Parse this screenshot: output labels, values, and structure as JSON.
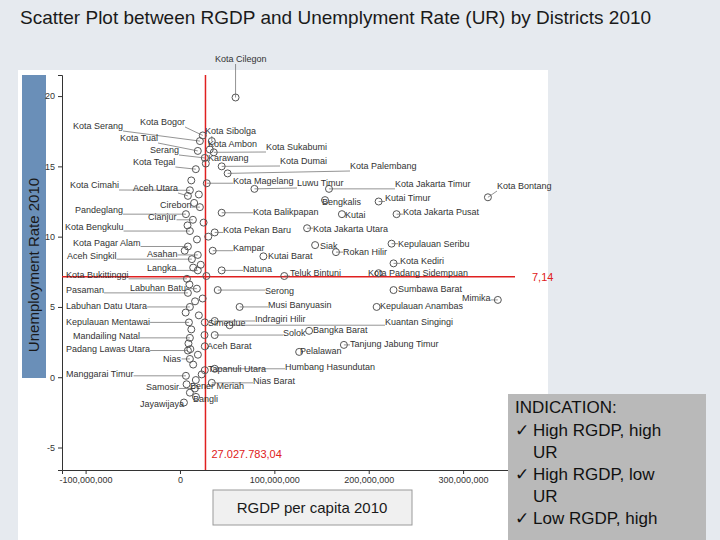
{
  "chart_data": {
    "type": "scatter",
    "title": "Scatter Plot between RGDP and Unemplyment Rate (UR) by Districts 2010",
    "x_label": "RGDP per capita 2010",
    "y_label": "Unemployment Rate 2010",
    "color": "#555555",
    "marker": "circle",
    "xlim": [
      -125000000,
      355000000
    ],
    "ylim": [
      -6.6,
      21.5
    ],
    "xticks": [
      {
        "value": -100000000,
        "label": "-100,000,000"
      },
      0,
      {
        "value": 100000000,
        "label": "100,000,000"
      },
      {
        "value": 200000000,
        "label": "200,000,000"
      },
      {
        "value": 300000000,
        "label": "300,000,000"
      }
    ],
    "yticks": [
      -5,
      0,
      5,
      10,
      15,
      20
    ],
    "x": [
      21100000,
      24200000,
      18900000,
      26300000,
      16800000,
      10500000,
      8400000,
      21100000,
      6300000,
      13700000,
      10500000,
      8400000,
      12600000,
      18900000,
      18900000,
      7400000,
      17900000,
      8400000,
      10500000,
      9500000,
      10500000,
      8400000,
      10500000,
      6300000,
      15800000,
      4200000,
      16800000,
      10500000,
      58900000,
      33700000,
      31600000,
      35800000,
      27400000,
      44200000,
      50500000,
      28400000,
      78900000,
      157900000,
      326300000,
      153700000,
      210500000,
      44200000,
      171600000,
      229500000,
      36800000,
      134700000,
      143200000,
      165300000,
      224200000,
      34700000,
      88400000,
      44200000,
      226300000,
      110500000,
      210500000,
      40000000,
      226300000,
      336800000,
      63200000,
      208400000,
      36800000,
      52600000,
      136800000,
      36800000,
      26300000,
      173700000,
      126300000,
      36800000,
      26300000,
      33700000,
      26300000,
      12000000,
      20000000,
      15000000,
      25000000,
      8000000,
      30000000,
      18000000,
      5000000,
      22000000,
      14000000,
      28000000,
      10000000,
      24000000,
      16000000,
      6000000,
      20000000,
      12000000,
      26000000,
      9000000,
      19000000,
      14000000,
      23000000,
      7000000,
      17000000,
      11000000
    ],
    "values": [
      16.8,
      17.2,
      16.1,
      15.6,
      14.8,
      13.3,
      12.9,
      12.1,
      11.6,
      11.2,
      10.4,
      9.3,
      8.4,
      8.7,
      7.6,
      7.0,
      6.3,
      6.0,
      5.0,
      3.9,
      2.8,
      1.9,
      1.3,
      0.1,
      -0.8,
      -1.8,
      -0.2,
      -1.1,
      19.9,
      16.8,
      16.2,
      16.0,
      15.2,
      15.0,
      14.5,
      13.8,
      13.4,
      13.4,
      12.8,
      12.6,
      12.5,
      11.7,
      11.6,
      11.6,
      10.3,
      10.6,
      9.4,
      8.9,
      9.5,
      9.0,
      8.6,
      7.6,
      8.1,
      7.2,
      7.4,
      6.2,
      6.2,
      5.5,
      5.0,
      5.0,
      4.0,
      3.7,
      3.3,
      3.0,
      2.2,
      2.3,
      1.8,
      0.6,
      0.5,
      -0.4,
      3.9,
      14.0,
      13.0,
      12.4,
      11.0,
      10.8,
      10.0,
      9.8,
      9.0,
      8.0,
      7.8,
      7.2,
      6.6,
      5.6,
      5.4,
      4.6,
      4.4,
      3.4,
      3.0,
      2.4,
      1.6,
      0.9,
      0.2,
      -0.5,
      -1.4,
      2.0
    ],
    "labels": [
      "Kota Serang",
      "Kota Bogor",
      "Kota Tual",
      "Serang",
      "Kota Tegal",
      "Kota Cimahi",
      "Aceh Utara",
      "Cirebon",
      "Pandeglang",
      "Cianjur",
      "Kota Bengkulu",
      "Kota Pagar Alam",
      "Aceh Singkil",
      "Asahan",
      "Langka",
      "Kota Bukittinggi",
      "Labuhan Batu",
      "Pasaman",
      "Labuhan Datu Utara",
      "Kepulauan Mentawai",
      "Mandailing Natal",
      "Padang Lawas Utara",
      "Nias",
      "Manggarai Timur",
      "Samosir",
      "Jayawijaya",
      "Bener Meriah",
      "Bangli",
      "Kota Cilegon",
      "Kota Sibolga",
      "Kota Ambon",
      "Kota Sukabumi",
      "Karawang",
      "Kota Dumai",
      "Kota Palembang",
      "Kota Magelang",
      "Luwu Timur",
      "Kota Jakarta Timur",
      "Kota Bontang",
      "Bengkalis",
      "Kutai Timur",
      "Kota Balikpapan",
      "Kutai",
      "Kota Jakarta Pusat",
      "Kota Pekan Baru",
      "Kota Jakarta Utara",
      "Siak",
      "Rokan Hilir",
      "Kepulauan Seribu",
      "Kampar",
      "Kutai Barat",
      "Natuna",
      "Kota Kediri",
      "Teluk Bintuni",
      "Kota Padang Sidempuan",
      "Serong",
      "Sumbawa Barat",
      "Mimika",
      "Musi Banyuasin",
      "Kepulauan Anambas",
      "Indragiri Hilir",
      "Kuantan Singingi",
      "Bangka Barat",
      "Solok",
      "Aceh Barat",
      "Tanjung Jabung Timur",
      "Pelalawan",
      "Humbang Hasundutan",
      "Tapanuli Utara",
      "Nias Barat",
      "Simeulue",
      null,
      null,
      null,
      null,
      null,
      null,
      null,
      null,
      null,
      null,
      null,
      null,
      null,
      null,
      null,
      null,
      null,
      null,
      null,
      null,
      null,
      null,
      null,
      null,
      null
    ],
    "ref_lines": [
      {
        "x": 27027783.04,
        "label": "27.027.783,04",
        "color": "#e02020"
      },
      {
        "y": 7.14,
        "label": "7,14",
        "color": "#e02020"
      }
    ],
    "indication": {
      "title": "INDICATION:",
      "bullet": "✓",
      "items": [
        "High RGDP, high UR",
        "High RGDP, low UR",
        "Low RGDP, high"
      ]
    }
  }
}
